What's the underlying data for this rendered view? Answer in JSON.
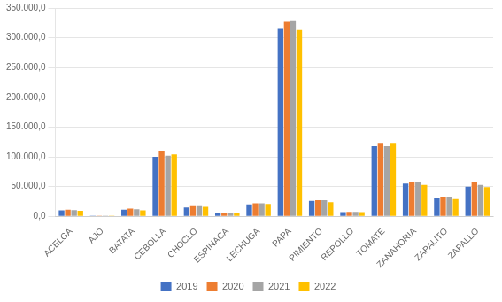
{
  "chart_data": {
    "type": "bar",
    "categories": [
      "ACELGA",
      "AJO",
      "BATATA",
      "CEBOLLA",
      "CHOCLO",
      "ESPINACA",
      "LECHUGA",
      "PAPA",
      "PIMIENTO",
      "REPOLLO",
      "TOMATE",
      "ZANAHORIA",
      "ZAPALITO",
      "ZAPALLO"
    ],
    "series": [
      {
        "name": "2019",
        "color": "#4472C4",
        "values": [
          10000,
          1200,
          11000,
          100000,
          15000,
          5000,
          20000,
          315000,
          26000,
          7000,
          118000,
          55000,
          30000,
          50000
        ]
      },
      {
        "name": "2020",
        "color": "#ED7D31",
        "values": [
          11000,
          1200,
          13000,
          110000,
          17000,
          6000,
          22000,
          327000,
          27000,
          7500,
          122000,
          57000,
          33000,
          58000
        ]
      },
      {
        "name": "2021",
        "color": "#A5A5A5",
        "values": [
          10500,
          1200,
          12000,
          102000,
          17000,
          6000,
          22000,
          328000,
          27000,
          7500,
          118000,
          57000,
          33000,
          53000
        ]
      },
      {
        "name": "2022",
        "color": "#FFC000",
        "values": [
          9500,
          1000,
          10000,
          104000,
          16000,
          5000,
          21000,
          313000,
          24000,
          7000,
          122000,
          53000,
          29000,
          49000
        ]
      }
    ],
    "ylim": [
      0,
      350000
    ],
    "yticks": [
      {
        "value": 0,
        "label": "0,0"
      },
      {
        "value": 50000,
        "label": "50.000,0"
      },
      {
        "value": 100000,
        "label": "100.000,0"
      },
      {
        "value": 150000,
        "label": "150.000,0"
      },
      {
        "value": 200000,
        "label": "200.000,0"
      },
      {
        "value": 250000,
        "label": "250.000,0"
      },
      {
        "value": 300000,
        "label": "300.000,0"
      },
      {
        "value": 350000,
        "label": "350.000,0"
      }
    ],
    "grid": true,
    "legend": "bottom"
  }
}
